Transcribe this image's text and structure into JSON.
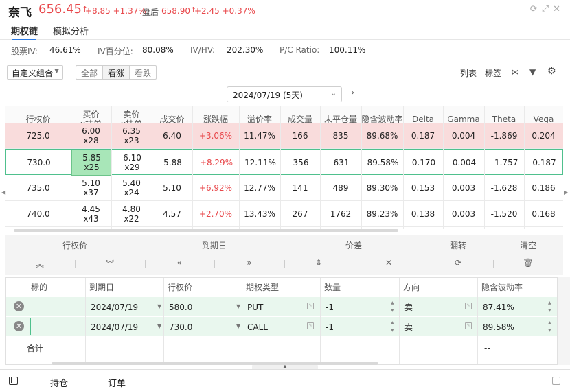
{
  "header": {
    "name": "奈飞",
    "price": "656.45",
    "arrow": "↑",
    "change": "+8.85 +1.37%",
    "afterhours_label": "盘后",
    "afterhours_price": "658.90",
    "afterhours_change": "+2.45 +0.37%"
  },
  "tabs": [
    {
      "label": "期权链",
      "active": true
    },
    {
      "label": "模拟分析",
      "active": false
    }
  ],
  "stats": {
    "iv_label": "股票IV:",
    "iv": "46.61%",
    "ivpct_label": "IV百分位:",
    "ivpct": "80.08%",
    "ivhv_label": "IV/HV:",
    "ivhv": "202.30%",
    "pc_label": "P/C Ratio:",
    "pc": "100.11%"
  },
  "toolbar": {
    "combo": "自定义组合",
    "filters": [
      "全部",
      "看涨",
      "看跌"
    ],
    "selected_filter": "看涨",
    "list": "列表",
    "tag": "标签"
  },
  "expiry": {
    "value": "2024/07/19 (5天)"
  },
  "chain": {
    "headers": [
      {
        "l1": "行权价",
        "l2": ""
      },
      {
        "l1": "买价",
        "l2": "x挂单"
      },
      {
        "l1": "卖价",
        "l2": "x挂单"
      },
      {
        "l1": "成交价",
        "l2": ""
      },
      {
        "l1": "涨跌幅",
        "l2": ""
      },
      {
        "l1": "溢价率",
        "l2": ""
      },
      {
        "l1": "成交量",
        "l2": ""
      },
      {
        "l1": "未平仓量",
        "l2": ""
      },
      {
        "l1": "隐含波动率",
        "l2": ""
      },
      {
        "l1": "Delta",
        "l2": ""
      },
      {
        "l1": "Gamma",
        "l2": ""
      },
      {
        "l1": "Theta",
        "l2": ""
      },
      {
        "l1": "Vega",
        "l2": ""
      }
    ],
    "rows": [
      {
        "strike": "725.0",
        "bid": "6.00",
        "bidsz": "x28",
        "ask": "6.35",
        "asksz": "x23",
        "last": "6.40",
        "chg": "+3.06%",
        "prem": "11.47%",
        "vol": "166",
        "oi": "835",
        "iv": "89.68%",
        "delta": "0.187",
        "gamma": "0.004",
        "theta": "-1.869",
        "vega": "0.204"
      },
      {
        "strike": "730.0",
        "bid": "5.85",
        "bidsz": "x25",
        "ask": "6.10",
        "asksz": "x29",
        "last": "5.88",
        "chg": "+8.29%",
        "prem": "12.11%",
        "vol": "356",
        "oi": "631",
        "iv": "89.58%",
        "delta": "0.170",
        "gamma": "0.004",
        "theta": "-1.757",
        "vega": "0.187"
      },
      {
        "strike": "735.0",
        "bid": "5.10",
        "bidsz": "x37",
        "ask": "5.40",
        "asksz": "x24",
        "last": "5.10",
        "chg": "+6.92%",
        "prem": "12.77%",
        "vol": "141",
        "oi": "489",
        "iv": "89.30%",
        "delta": "0.153",
        "gamma": "0.003",
        "theta": "-1.628",
        "vega": "0.186"
      },
      {
        "strike": "740.0",
        "bid": "4.45",
        "bidsz": "x43",
        "ask": "4.80",
        "asksz": "x22",
        "last": "4.57",
        "chg": "+2.70%",
        "prem": "13.43%",
        "vol": "267",
        "oi": "1762",
        "iv": "89.23%",
        "delta": "0.138",
        "gamma": "0.003",
        "theta": "-1.520",
        "vega": "0.168"
      }
    ]
  },
  "actions": {
    "labels": [
      "行权价",
      "到期日",
      "价差",
      "翻转",
      "清空"
    ],
    "icons": [
      "«",
      "»",
      "«",
      "»",
      "⇕",
      "⇔",
      "⟳",
      "🗑"
    ]
  },
  "legs": {
    "headers": [
      "标的",
      "到期日",
      "行权价",
      "期权类型",
      "数量",
      "方向",
      "隐含波动率"
    ],
    "rows": [
      {
        "expiry": "2024/07/19",
        "strike": "580.0",
        "type": "PUT",
        "qty": "-1",
        "side": "卖",
        "iv": "87.41%"
      },
      {
        "expiry": "2024/07/19",
        "strike": "730.0",
        "type": "CALL",
        "qty": "-1",
        "side": "卖",
        "iv": "89.58%"
      }
    ],
    "total_label": "合计",
    "total_iv": "--"
  },
  "bottom": {
    "tabs": [
      "持仓",
      "订单"
    ]
  }
}
